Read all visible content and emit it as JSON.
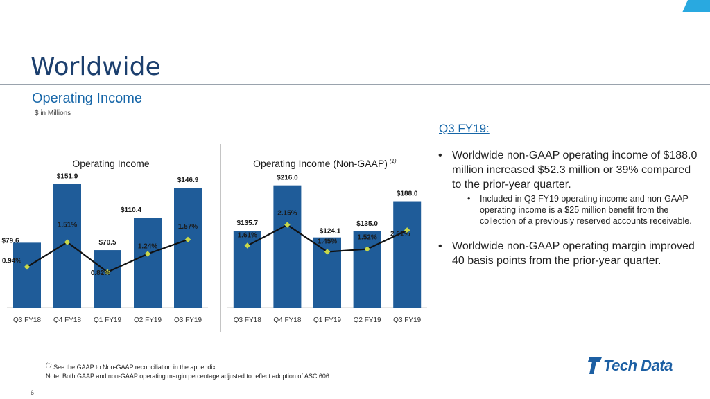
{
  "slide": {
    "title": "Worldwide",
    "subtitle": "Operating Income",
    "units": "$ in Millions",
    "page_number": "6"
  },
  "notes": {
    "heading": "Q3 FY19:",
    "bullet1": "Worldwide non-GAAP operating income of $188.0 million increased $52.3 million or 39% compared to the prior-year quarter.",
    "sub_bullet1": "Included in Q3 FY19 operating income and non-GAAP operating income is a $25 million benefit from the collection of a previously reserved accounts receivable.",
    "bullet2": "Worldwide non-GAAP operating margin improved 40 basis points from the prior-year quarter.",
    "bullet_symbol": "•"
  },
  "footnotes": {
    "marker": "(1)",
    "line1": "See the GAAP to Non-GAAP reconciliation in the appendix.",
    "line2": "Note: Both GAAP and non-GAAP operating margin percentage adjusted to reflect adoption of ASC 606."
  },
  "logo": {
    "text": "Tech Data"
  },
  "colors": {
    "bar": "#1f5c99",
    "line": "#111111",
    "marker": "#c8d84a",
    "title": "#1c3f6e",
    "accent": "#1666a8"
  },
  "chart_data": [
    {
      "type": "bar",
      "title": "Operating Income",
      "title_superscript": "",
      "categories": [
        "Q3 FY18",
        "Q4 FY18",
        "Q1 FY19",
        "Q2 FY19",
        "Q3 FY19"
      ],
      "series": [
        {
          "name": "Operating Income ($M)",
          "values": [
            79.6,
            151.9,
            70.5,
            110.4,
            146.9
          ],
          "labels": [
            "$79.6",
            "$151.9",
            "$70.5",
            "$110.4",
            "$146.9"
          ]
        },
        {
          "name": "Operating Margin (%)",
          "type": "line",
          "values": [
            0.94,
            1.51,
            0.82,
            1.24,
            1.57
          ],
          "labels": [
            "0.94%",
            "1.51%",
            "0.82%",
            "1.24%",
            "1.57%"
          ]
        }
      ],
      "ylim": [
        0,
        170
      ],
      "y2lim": [
        0,
        3.2
      ]
    },
    {
      "type": "bar",
      "title": "Operating Income (Non-GAAP)",
      "title_superscript": "(1)",
      "categories": [
        "Q3 FY18",
        "Q4 FY18",
        "Q1 FY19",
        "Q2 FY19",
        "Q3 FY19"
      ],
      "series": [
        {
          "name": "Non-GAAP Operating Income ($M)",
          "values": [
            135.7,
            216.0,
            124.1,
            135.0,
            188.0
          ],
          "labels": [
            "$135.7",
            "$216.0",
            "$124.1",
            "$135.0",
            "$188.0"
          ]
        },
        {
          "name": "Non-GAAP Operating Margin (%)",
          "type": "line",
          "values": [
            1.61,
            2.15,
            1.45,
            1.52,
            2.01
          ],
          "labels": [
            "1.61%",
            "2.15%",
            "1.45%",
            "1.52%",
            "2.01%"
          ]
        }
      ],
      "ylim": [
        0,
        245
      ],
      "y2lim": [
        0,
        3.6
      ]
    }
  ]
}
